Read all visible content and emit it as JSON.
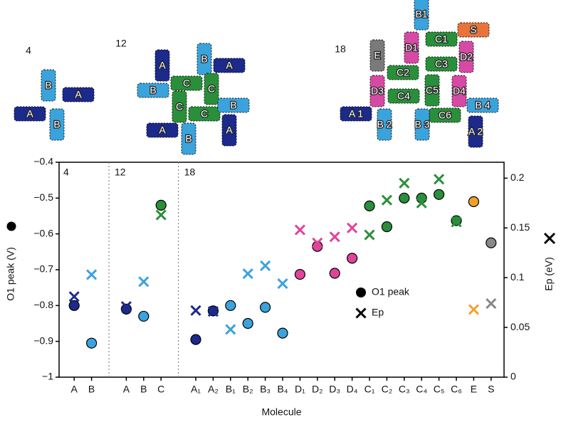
{
  "diagrams": [
    {
      "label": "4",
      "molecules": [
        "B",
        "A",
        "A",
        "B"
      ]
    },
    {
      "label": "12",
      "molecules": [
        "A",
        "B",
        "A",
        "C",
        "C",
        "B",
        "C",
        "C",
        "B",
        "A",
        "A",
        "B"
      ]
    },
    {
      "label": "18",
      "molecules": [
        "B1",
        "S",
        "D1",
        "C1",
        "E",
        "D2",
        "C2",
        "C3",
        "D3",
        "C4",
        "C5",
        "D4",
        "C6",
        "B 4",
        "A 1",
        "B 2",
        "B 3",
        "A 2"
      ]
    }
  ],
  "chart_data": {
    "type": "scatter",
    "x_label": "Molecule",
    "y_label": "O1 peak (V)",
    "y2_label": "Ep (eV)",
    "group_labels": [
      "4",
      "12",
      "18"
    ],
    "categories": [
      "A",
      "B",
      null,
      "A",
      "B",
      "C",
      null,
      "A₁",
      "A₂",
      "B₁",
      "B₂",
      "B₃",
      "B₄",
      "D₁",
      "D₂",
      "D₃",
      "D₄",
      "C₁",
      "C₂",
      "C₃",
      "C₄",
      "C₅",
      "C₆",
      "E",
      "S"
    ],
    "category_colors": [
      "#1c2a8c",
      "#3ba3dc",
      null,
      "#1c2a8c",
      "#3ba3dc",
      "#2a8f3a",
      null,
      "#1c2a8c",
      "#1c2a8c",
      "#1f9a9a",
      "#1f9a9a",
      "#1f9a9a",
      "#1f9a9a",
      "#9b2a8a",
      "#9b2a8a",
      "#9b2a8a",
      "#9b2a8a",
      "#2a8f3a",
      "#2a8f3a",
      "#2a8f3a",
      "#2a8f3a",
      "#2a8f3a",
      "#2a8f3a",
      "#444444",
      "#8b4513"
    ],
    "ylim": [
      -1,
      -0.4
    ],
    "yticks": [
      {
        "value": -1,
        "label": "−1"
      },
      {
        "value": -0.9,
        "label": "−0.9"
      },
      {
        "value": -0.8,
        "label": "−0.8"
      },
      {
        "value": -0.7,
        "label": "−0.7"
      },
      {
        "value": -0.6,
        "label": "−0.6"
      },
      {
        "value": -0.5,
        "label": "−0.5"
      },
      {
        "value": -0.4,
        "label": "−0.4"
      }
    ],
    "y2lim": [
      0,
      0.216
    ],
    "y2ticks": [
      0,
      0.05,
      0.1,
      0.15,
      0.2
    ],
    "series": [
      {
        "name": "O1 peak",
        "marker": "circle",
        "colors": [
          "#1c2a8c",
          "#3ba3dc",
          null,
          "#1c2a8c",
          "#3ba3dc",
          "#2a8f3a",
          null,
          "#1c2a8c",
          "#1c2a8c",
          "#3ba3dc",
          "#3ba3dc",
          "#3ba3dc",
          "#3ba3dc",
          "#e0449a",
          "#e0449a",
          "#e0449a",
          "#e0449a",
          "#2a8f3a",
          "#2a8f3a",
          "#2a8f3a",
          "#2a8f3a",
          "#2a8f3a",
          "#2a8f3a",
          "#f5a02a",
          "#888888"
        ],
        "values": [
          -0.8,
          -0.905,
          null,
          -0.81,
          -0.83,
          -0.52,
          null,
          -0.895,
          -0.815,
          -0.8,
          -0.85,
          -0.805,
          -0.877,
          -0.713,
          -0.635,
          -0.71,
          -0.668,
          -0.522,
          -0.58,
          -0.5,
          -0.5,
          -0.49,
          -0.563,
          -0.51,
          -0.625
        ]
      },
      {
        "name": "Ep",
        "marker": "x",
        "axis": "y2",
        "colors": [
          "#1c2a8c",
          "#3ba3dc",
          null,
          "#1c2a8c",
          "#3ba3dc",
          "#2a8f3a",
          null,
          "#1c2a8c",
          "#1c2a8c",
          "#3ba3dc",
          "#3ba3dc",
          "#3ba3dc",
          "#3ba3dc",
          "#e0449a",
          "#e0449a",
          "#e0449a",
          "#e0449a",
          "#2a8f3a",
          "#2a8f3a",
          "#2a8f3a",
          "#2a8f3a",
          "#2a8f3a",
          "#2a8f3a",
          "#f5a02a",
          "#888888"
        ],
        "values": [
          0.081,
          0.103,
          null,
          0.071,
          0.096,
          0.163,
          null,
          0.067,
          0.066,
          0.048,
          0.104,
          0.112,
          0.094,
          0.148,
          0.135,
          0.141,
          0.15,
          0.143,
          0.178,
          0.195,
          0.175,
          0.199,
          0.156,
          0.068,
          0.074
        ]
      }
    ]
  }
}
